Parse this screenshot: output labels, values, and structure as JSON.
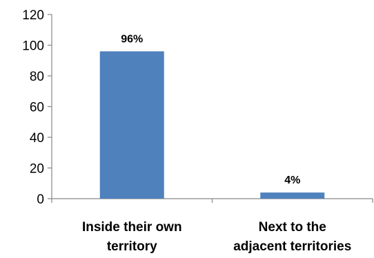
{
  "chart_data": {
    "type": "bar",
    "categories": [
      [
        "Inside their own",
        "territory"
      ],
      [
        "Next to the",
        "adjacent territories"
      ]
    ],
    "values": [
      96,
      4
    ],
    "data_labels": [
      "96%",
      "4%"
    ],
    "y_ticks": [
      "0",
      "20",
      "40",
      "60",
      "80",
      "100",
      "120"
    ],
    "ylim": [
      0,
      120
    ],
    "grid": false,
    "legend": "none",
    "bar_color": "#4f81bd",
    "axis_color": "#868686"
  }
}
